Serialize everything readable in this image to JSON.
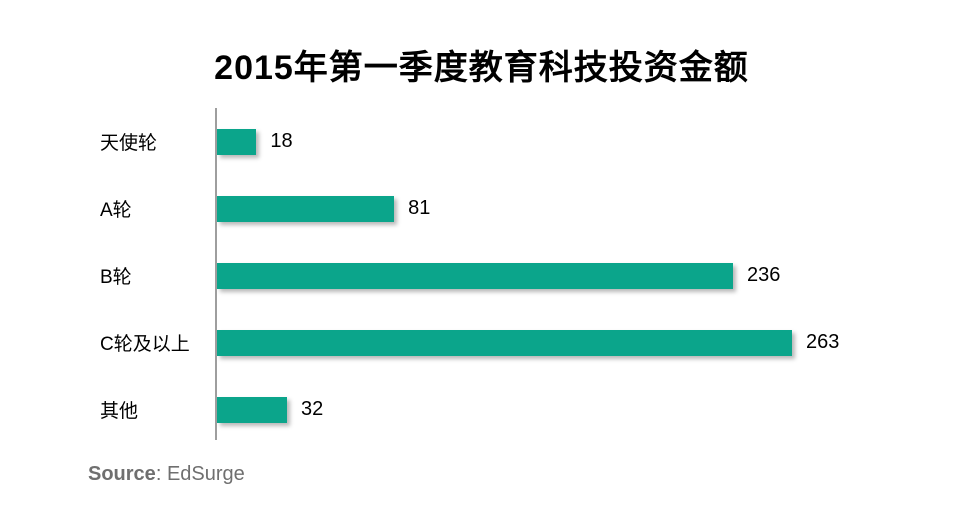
{
  "title": "2015年第一季度教育科技投资金额",
  "source": {
    "label": "Source",
    "separator": ": ",
    "value": "EdSurge"
  },
  "colors": {
    "bar": "#0ba58b",
    "axis": "#9e9e9e",
    "text": "#000000",
    "source_text": "#6f6f6f"
  },
  "chart_data": {
    "type": "bar",
    "orientation": "horizontal",
    "title": "2015年第一季度教育科技投资金额",
    "categories": [
      "天使轮",
      "A轮",
      "B轮",
      "C轮及以上",
      "其他"
    ],
    "values": [
      18,
      81,
      236,
      263,
      32
    ],
    "xlabel": "",
    "ylabel": "",
    "xlim": [
      0,
      263
    ],
    "grid": false,
    "legend": false,
    "value_labels": true
  }
}
